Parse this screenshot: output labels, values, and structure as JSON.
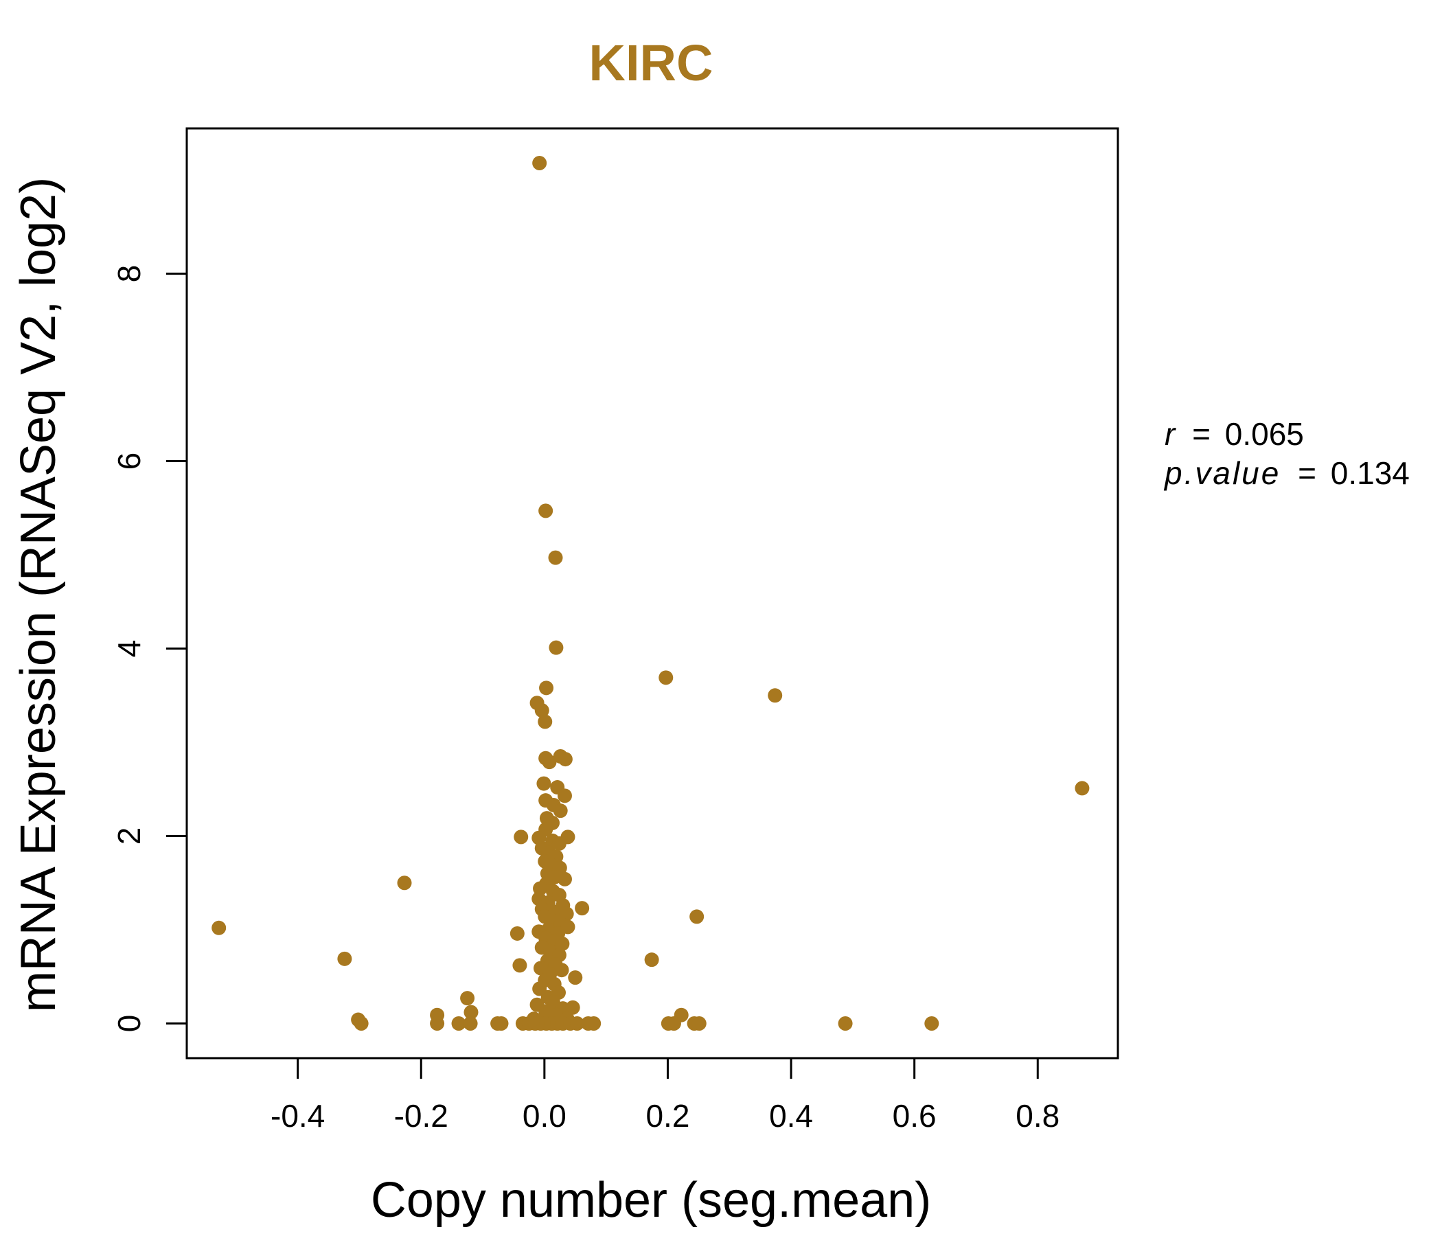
{
  "chart_data": {
    "type": "scatter",
    "title": "KIRC",
    "xlabel": "Copy number (seg.mean)",
    "ylabel": "mRNA Expression (RNASeq V2, log2)",
    "xlim": [
      -0.58,
      0.93
    ],
    "ylim": [
      -0.37,
      9.55
    ],
    "x_ticks": [
      -0.4,
      -0.2,
      0.0,
      0.2,
      0.4,
      0.6,
      0.8
    ],
    "x_tick_labels": [
      "-0.4",
      "-0.2",
      "0.0",
      "0.2",
      "0.4",
      "0.6",
      "0.8"
    ],
    "y_ticks": [
      0,
      2,
      4,
      6,
      8
    ],
    "y_tick_labels": [
      "0",
      "2",
      "4",
      "6",
      "8"
    ],
    "grid": false,
    "point_color": "#A8781F",
    "title_color": "#A8781F",
    "stats": {
      "r_label": "r",
      "r_value": "0.065",
      "p_label": "p.value",
      "p_value": "0.134"
    },
    "points": [
      {
        "x": -0.008,
        "y": 9.18
      },
      {
        "x": 0.002,
        "y": 5.47
      },
      {
        "x": 0.018,
        "y": 4.97
      },
      {
        "x": 0.019,
        "y": 4.01
      },
      {
        "x": 0.197,
        "y": 3.69
      },
      {
        "x": 0.374,
        "y": 3.5
      },
      {
        "x": 0.003,
        "y": 3.58
      },
      {
        "x": -0.012,
        "y": 3.42
      },
      {
        "x": -0.004,
        "y": 3.34
      },
      {
        "x": 0.001,
        "y": 3.22
      },
      {
        "x": 0.002,
        "y": 2.83
      },
      {
        "x": 0.008,
        "y": 2.79
      },
      {
        "x": 0.026,
        "y": 2.85
      },
      {
        "x": 0.034,
        "y": 2.82
      },
      {
        "x": 0.872,
        "y": 2.51
      },
      {
        "x": -0.001,
        "y": 2.56
      },
      {
        "x": 0.021,
        "y": 2.52
      },
      {
        "x": 0.033,
        "y": 2.43
      },
      {
        "x": 0.002,
        "y": 2.38
      },
      {
        "x": 0.015,
        "y": 2.33
      },
      {
        "x": 0.026,
        "y": 2.27
      },
      {
        "x": 0.004,
        "y": 2.19
      },
      {
        "x": 0.013,
        "y": 2.14
      },
      {
        "x": 0.002,
        "y": 2.07
      },
      {
        "x": -0.038,
        "y": 1.99
      },
      {
        "x": 0.038,
        "y": 1.99
      },
      {
        "x": -0.009,
        "y": 1.98
      },
      {
        "x": 0.013,
        "y": 1.95
      },
      {
        "x": 0.024,
        "y": 1.92
      },
      {
        "x": -0.004,
        "y": 1.87
      },
      {
        "x": 0.007,
        "y": 1.82
      },
      {
        "x": 0.019,
        "y": 1.78
      },
      {
        "x": 0.001,
        "y": 1.73
      },
      {
        "x": 0.011,
        "y": 1.69
      },
      {
        "x": 0.025,
        "y": 1.66
      },
      {
        "x": 0.005,
        "y": 1.6
      },
      {
        "x": 0.016,
        "y": 1.56
      },
      {
        "x": 0.033,
        "y": 1.54
      },
      {
        "x": -0.227,
        "y": 1.5
      },
      {
        "x": 0.003,
        "y": 1.49
      },
      {
        "x": -0.007,
        "y": 1.44
      },
      {
        "x": 0.014,
        "y": 1.41
      },
      {
        "x": 0.024,
        "y": 1.37
      },
      {
        "x": -0.009,
        "y": 1.33
      },
      {
        "x": 0.006,
        "y": 1.29
      },
      {
        "x": 0.03,
        "y": 1.26
      },
      {
        "x": 0.061,
        "y": 1.23
      },
      {
        "x": -0.004,
        "y": 1.22
      },
      {
        "x": 0.018,
        "y": 1.19
      },
      {
        "x": 0.036,
        "y": 1.17
      },
      {
        "x": 0.001,
        "y": 1.14
      },
      {
        "x": 0.247,
        "y": 1.14
      },
      {
        "x": 0.012,
        "y": 1.1
      },
      {
        "x": 0.027,
        "y": 1.06
      },
      {
        "x": -0.528,
        "y": 1.02
      },
      {
        "x": 0.038,
        "y": 1.03
      },
      {
        "x": -0.009,
        "y": 0.98
      },
      {
        "x": 0.006,
        "y": 1.0
      },
      {
        "x": 0.022,
        "y": 0.96
      },
      {
        "x": -0.044,
        "y": 0.96
      },
      {
        "x": 0.002,
        "y": 0.91
      },
      {
        "x": 0.017,
        "y": 0.88
      },
      {
        "x": 0.029,
        "y": 0.85
      },
      {
        "x": -0.004,
        "y": 0.81
      },
      {
        "x": 0.01,
        "y": 0.77
      },
      {
        "x": 0.024,
        "y": 0.73
      },
      {
        "x": -0.324,
        "y": 0.69
      },
      {
        "x": 0.174,
        "y": 0.68
      },
      {
        "x": 0.005,
        "y": 0.67
      },
      {
        "x": 0.018,
        "y": 0.63
      },
      {
        "x": -0.04,
        "y": 0.62
      },
      {
        "x": -0.006,
        "y": 0.59
      },
      {
        "x": 0.028,
        "y": 0.57
      },
      {
        "x": 0.009,
        "y": 0.53
      },
      {
        "x": 0.05,
        "y": 0.49
      },
      {
        "x": 0.001,
        "y": 0.46
      },
      {
        "x": 0.016,
        "y": 0.42
      },
      {
        "x": -0.008,
        "y": 0.37
      },
      {
        "x": 0.023,
        "y": 0.33
      },
      {
        "x": 0.006,
        "y": 0.28
      },
      {
        "x": -0.125,
        "y": 0.27
      },
      {
        "x": 0.014,
        "y": 0.23
      },
      {
        "x": -0.012,
        "y": 0.2
      },
      {
        "x": 0.03,
        "y": 0.16
      },
      {
        "x": 0.002,
        "y": 0.13
      },
      {
        "x": -0.119,
        "y": 0.12
      },
      {
        "x": 0.046,
        "y": 0.17
      },
      {
        "x": 0.019,
        "y": 0.09
      },
      {
        "x": -0.174,
        "y": 0.09
      },
      {
        "x": 0.222,
        "y": 0.09
      },
      {
        "x": -0.302,
        "y": 0.04
      },
      {
        "x": -0.017,
        "y": 0.05
      },
      {
        "x": 0.037,
        "y": 0.05
      },
      {
        "x": -0.297,
        "y": 0.0
      },
      {
        "x": -0.174,
        "y": 0.0
      },
      {
        "x": -0.139,
        "y": 0.0
      },
      {
        "x": -0.12,
        "y": 0.0
      },
      {
        "x": -0.076,
        "y": 0.0
      },
      {
        "x": -0.07,
        "y": 0.0
      },
      {
        "x": -0.035,
        "y": 0.0
      },
      {
        "x": -0.025,
        "y": 0.0
      },
      {
        "x": -0.015,
        "y": 0.0
      },
      {
        "x": -0.006,
        "y": 0.0
      },
      {
        "x": 0.003,
        "y": 0.0
      },
      {
        "x": 0.012,
        "y": 0.0
      },
      {
        "x": 0.021,
        "y": 0.0
      },
      {
        "x": 0.03,
        "y": 0.0
      },
      {
        "x": 0.042,
        "y": 0.0
      },
      {
        "x": 0.053,
        "y": 0.0
      },
      {
        "x": 0.071,
        "y": 0.0
      },
      {
        "x": 0.08,
        "y": 0.0
      },
      {
        "x": 0.201,
        "y": 0.0
      },
      {
        "x": 0.21,
        "y": 0.0
      },
      {
        "x": 0.243,
        "y": 0.0
      },
      {
        "x": 0.251,
        "y": 0.0
      },
      {
        "x": 0.488,
        "y": 0.0
      },
      {
        "x": 0.628,
        "y": 0.0
      }
    ]
  }
}
